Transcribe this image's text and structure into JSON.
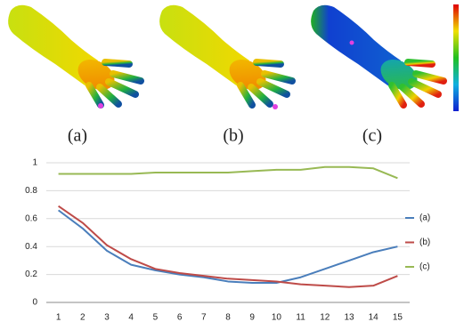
{
  "panels": {
    "labels": [
      "(a)",
      "(b)",
      "(c)"
    ]
  },
  "chart_data": {
    "type": "line",
    "categories": [
      "1",
      "2",
      "3",
      "4",
      "5",
      "6",
      "7",
      "8",
      "9",
      "10",
      "11",
      "12",
      "13",
      "14",
      "15"
    ],
    "series": [
      {
        "name": "(a)",
        "color": "#4a7ebb",
        "values": [
          0.66,
          0.53,
          0.37,
          0.27,
          0.23,
          0.2,
          0.18,
          0.15,
          0.14,
          0.14,
          0.18,
          0.24,
          0.3,
          0.36,
          0.4
        ]
      },
      {
        "name": "(b)",
        "color": "#be4b48",
        "values": [
          0.69,
          0.57,
          0.41,
          0.31,
          0.24,
          0.21,
          0.19,
          0.17,
          0.16,
          0.15,
          0.13,
          0.12,
          0.11,
          0.12,
          0.19
        ]
      },
      {
        "name": "(c)",
        "color": "#98b954",
        "values": [
          0.92,
          0.92,
          0.92,
          0.92,
          0.93,
          0.93,
          0.93,
          0.93,
          0.94,
          0.95,
          0.95,
          0.97,
          0.97,
          0.96,
          0.89
        ]
      }
    ],
    "ylim": [
      0,
      1
    ],
    "yticks": [
      0,
      0.2,
      0.4,
      0.6,
      0.8,
      1
    ],
    "grid": true,
    "legend": "right"
  }
}
